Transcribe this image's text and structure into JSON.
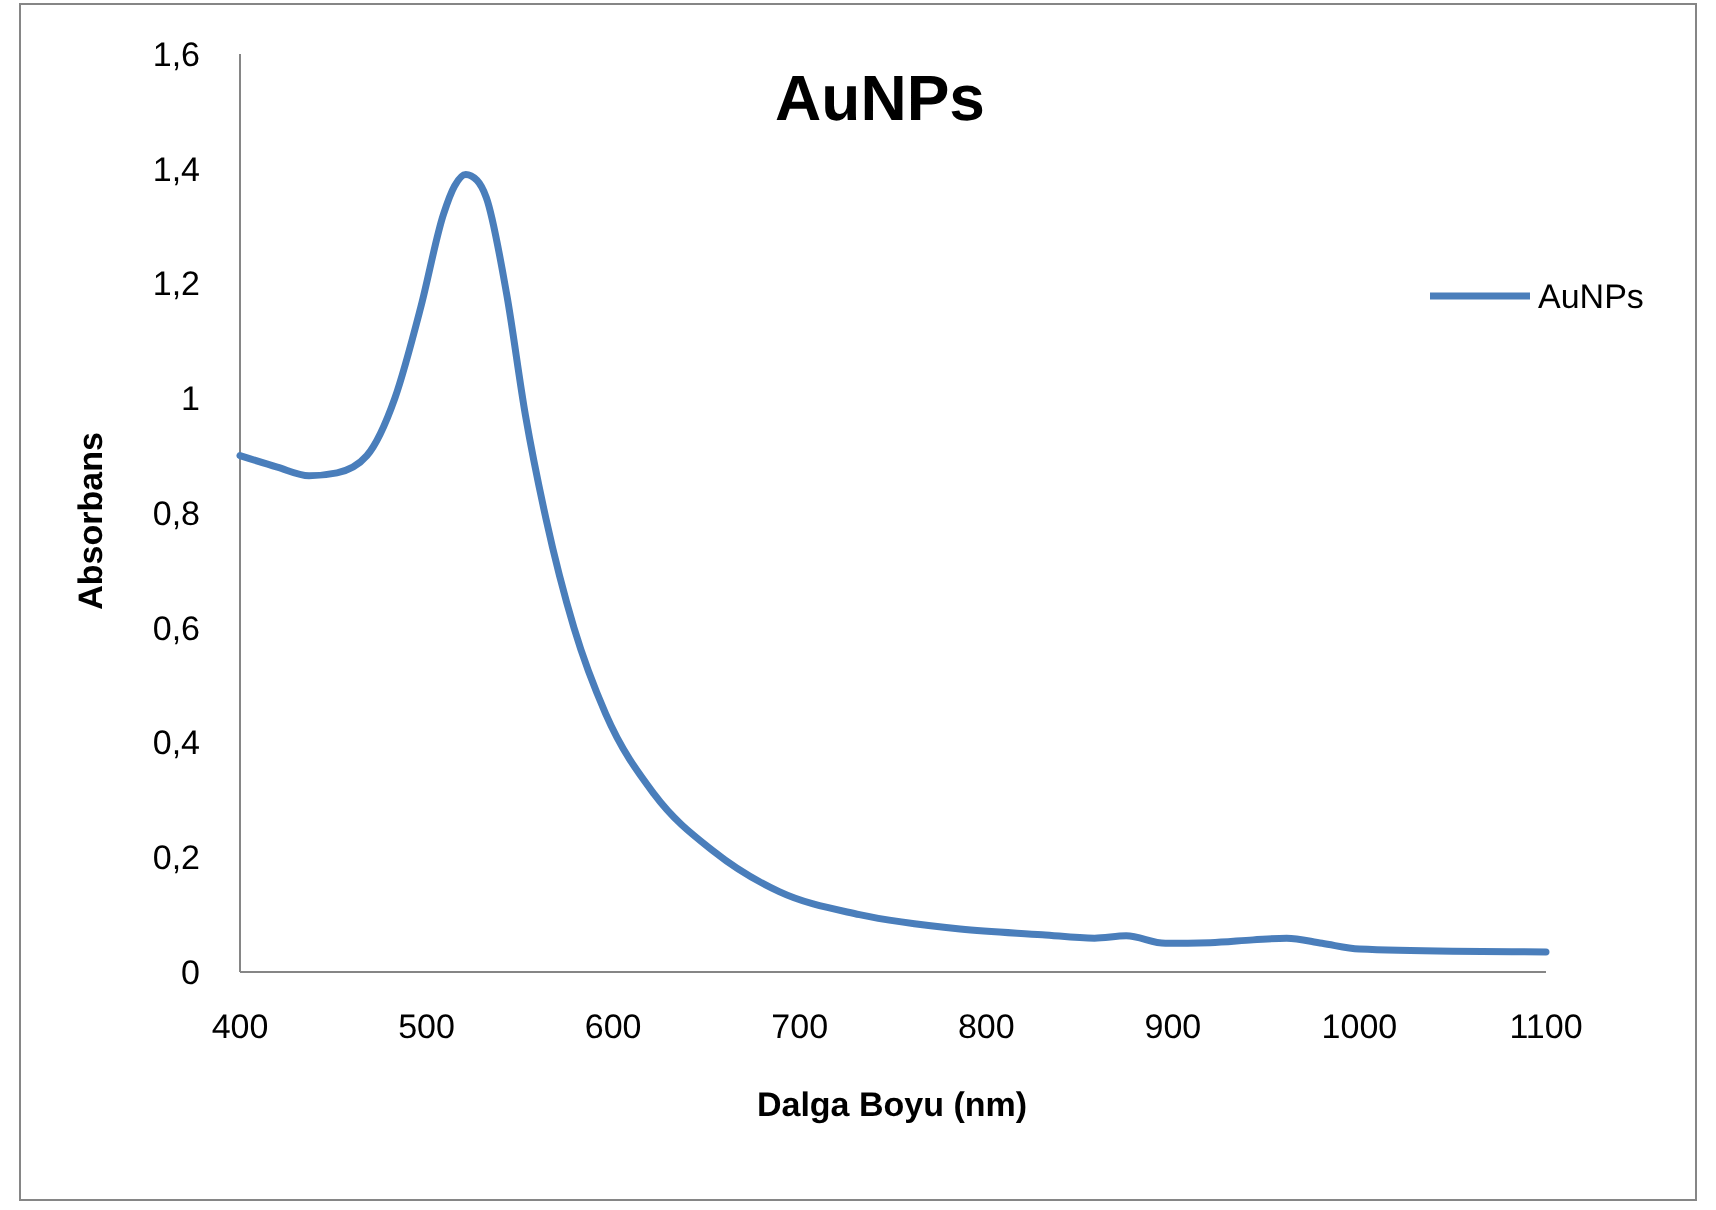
{
  "chart_data": {
    "type": "line",
    "title": "AuNPs",
    "xlabel": "Dalga Boyu (nm)",
    "ylabel": "Absorbans",
    "xlim": [
      400,
      1100
    ],
    "xticks": [
      400,
      500,
      600,
      700,
      800,
      900,
      1000,
      1100
    ],
    "ylim": [
      0,
      1.6
    ],
    "yticks": [
      0,
      {
        "value": 0.2,
        "label": "0,2"
      },
      {
        "value": 0.4,
        "label": "0,4"
      },
      {
        "value": 0.6,
        "label": "0,6"
      },
      {
        "value": 0.8,
        "label": "0,8"
      },
      1,
      {
        "value": 1.2,
        "label": "1,2"
      },
      {
        "value": 1.4,
        "label": "1,4"
      },
      {
        "value": 1.6,
        "label": "1,6"
      }
    ],
    "grid": false,
    "legend": "right",
    "marker": "none",
    "line_style": "solid",
    "series": [
      {
        "name": "AuNPs",
        "color": "#4a7ebb",
        "x": [
          400,
          420,
          437,
          452,
          468,
          483,
          497,
          509,
          515,
          521,
          527,
          532,
          543,
          553,
          564,
          579,
          596,
          622,
          654,
          689,
          732,
          786,
          830,
          858,
          875,
          896,
          920,
          943,
          961,
          980,
          1000,
          1050,
          1100
        ],
        "values": [
          0.9,
          0.88,
          0.865,
          0.87,
          0.9,
          1.0,
          1.16,
          1.32,
          1.37,
          1.39,
          1.38,
          1.35,
          1.18,
          0.97,
          0.79,
          0.6,
          0.45,
          0.31,
          0.21,
          0.14,
          0.1,
          0.075,
          0.065,
          0.059,
          0.063,
          0.05,
          0.051,
          0.056,
          0.059,
          0.05,
          0.04,
          0.036,
          0.035
        ]
      }
    ]
  }
}
